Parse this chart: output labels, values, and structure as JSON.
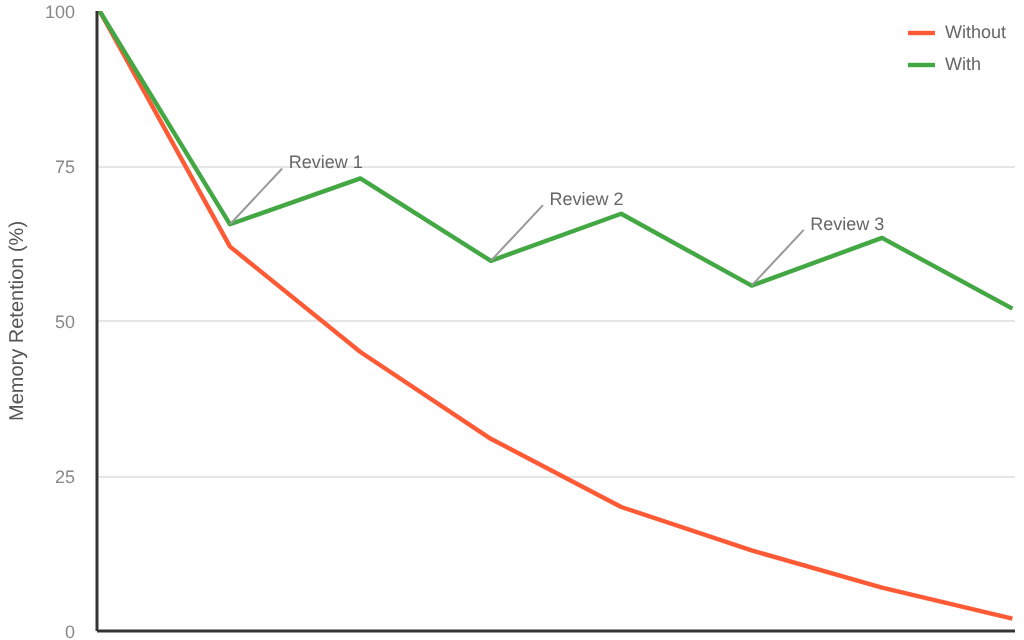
{
  "chart_data": {
    "type": "line",
    "ylabel": "Memory Retention (%)",
    "categories": [
      null,
      null,
      null,
      null,
      null,
      null,
      null,
      null
    ],
    "series": [
      {
        "name": "Without",
        "color": "#ff5a36",
        "values": [
          100,
          62,
          45,
          31,
          20,
          13,
          7,
          2
        ]
      },
      {
        "name": "With",
        "color": "#43a843",
        "values": [
          100,
          65.6,
          73,
          59.7,
          67.3,
          55.7,
          63.4,
          52
        ]
      }
    ],
    "annotations": [
      "Review 1",
      "Review 2",
      "Review 3"
    ],
    "ylim": [
      0,
      100
    ],
    "yticks": [
      0,
      25,
      50,
      75,
      100
    ],
    "grid": "y",
    "legend": "top right",
    "marker": "none",
    "line_style": "solid"
  }
}
